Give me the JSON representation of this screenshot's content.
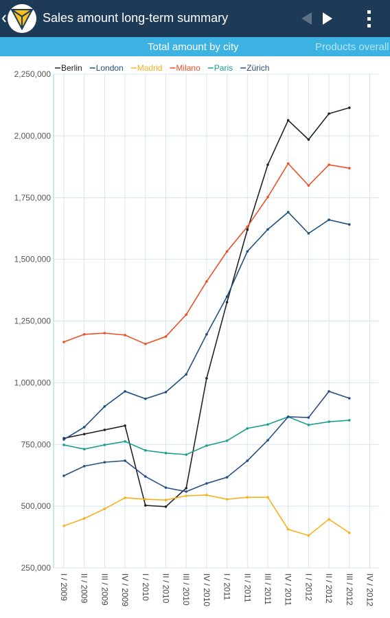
{
  "header": {
    "title": "Sales amount long-term summary"
  },
  "tabs": [
    "Total amount by city",
    "Products overall"
  ],
  "chart_data": {
    "type": "line",
    "categories": [
      "I / 2009",
      "II / 2009",
      "III / 2009",
      "IV / 2009",
      "I / 2010",
      "II / 2010",
      "III / 2010",
      "IV / 2010",
      "I / 2011",
      "II / 2011",
      "III / 2011",
      "IV / 2011",
      "I / 2012",
      "II / 2012",
      "III / 2012",
      "IV / 2012"
    ],
    "series": [
      {
        "name": "Berlin",
        "color": "#222222",
        "values": [
          775000,
          792000,
          809000,
          826000,
          503000,
          498000,
          573000,
          1018000,
          1326000,
          1620000,
          1883000,
          2063000,
          1985000,
          2090000,
          2114000,
          null
        ]
      },
      {
        "name": "London",
        "color": "#1f4f7e",
        "values": [
          770000,
          820000,
          904000,
          965000,
          935000,
          962000,
          1034000,
          1196000,
          1349000,
          1532000,
          1621000,
          1691000,
          1605000,
          1660000,
          1641000,
          null
        ]
      },
      {
        "name": "Madrid",
        "color": "#f5b21b",
        "values": [
          420000,
          450000,
          489000,
          534000,
          528000,
          525000,
          542000,
          545000,
          528000,
          536000,
          536000,
          406000,
          381000,
          447000,
          392000,
          null
        ]
      },
      {
        "name": "Milano",
        "color": "#f04e23",
        "values": [
          1165000,
          1196000,
          1201000,
          1193000,
          1157000,
          1187000,
          1276000,
          1410000,
          1532000,
          1632000,
          1752000,
          1888000,
          1799000,
          1883000,
          1869000,
          null
        ]
      },
      {
        "name": "Paris",
        "color": "#1a9d8f",
        "values": [
          748000,
          731000,
          748000,
          762000,
          726000,
          715000,
          709000,
          745000,
          765000,
          815000,
          831000,
          862000,
          829000,
          842000,
          848000,
          null
        ]
      },
      {
        "name": "Zürich",
        "color": "#284f86",
        "values": [
          623000,
          662000,
          678000,
          684000,
          620000,
          575000,
          559000,
          592000,
          617000,
          684000,
          767000,
          862000,
          859000,
          965000,
          937000,
          null
        ]
      }
    ],
    "ylim": [
      250000,
      2250000
    ],
    "yticks": [
      {
        "value": 250000,
        "label": "250,000"
      },
      {
        "value": 500000,
        "label": "500,000"
      },
      {
        "value": 750000,
        "label": "750,000"
      },
      {
        "value": 1000000,
        "label": "1,000,000"
      },
      {
        "value": 1250000,
        "label": "1,250,000"
      },
      {
        "value": 1500000,
        "label": "1,500,000"
      },
      {
        "value": 1750000,
        "label": "1,750,000"
      },
      {
        "value": 2000000,
        "label": "2,000,000"
      },
      {
        "value": 2250000,
        "label": "2,250,000"
      }
    ],
    "grid": true
  }
}
